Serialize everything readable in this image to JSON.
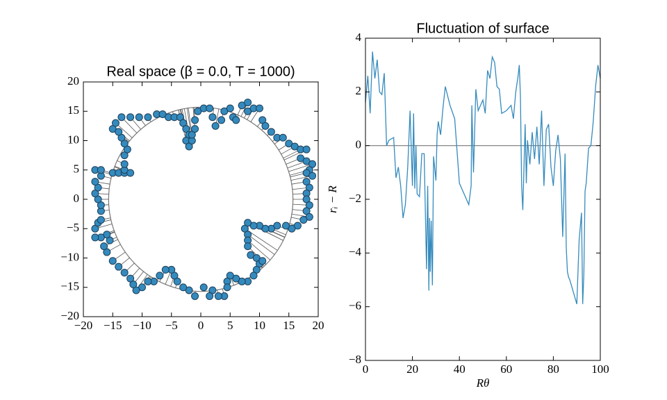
{
  "chart_data": [
    {
      "type": "scatter",
      "title": "Real space (β = 0.0, T = 1000)",
      "color": "#348abd",
      "circle_radius": 15.7,
      "x": [
        -15,
        -14.5,
        -13.5,
        -12,
        -10.5,
        -9,
        -7.5,
        -6.5,
        -5.5,
        -4.5,
        -3.5,
        -3,
        -2.5,
        -2,
        -2.5,
        -2,
        -1.5,
        -1.5,
        -1,
        -1,
        -0.5,
        0.5,
        1.5,
        2,
        2.5,
        3.5,
        4,
        5,
        5.5,
        6,
        7,
        8,
        8,
        9,
        10,
        10.5,
        11,
        12,
        13,
        14,
        15,
        16,
        17,
        18,
        17,
        18,
        19,
        18.5,
        18,
        19,
        18,
        18.5,
        18,
        18,
        18.5,
        18,
        18.5,
        17.5,
        16.5,
        15.5,
        14.5,
        13,
        12,
        11,
        10,
        9,
        8,
        7.5,
        8,
        8,
        8,
        8.5,
        9.5,
        10,
        10.5,
        9.5,
        9,
        8,
        7,
        6,
        5,
        4.5,
        4.5,
        4,
        3,
        2,
        1.5,
        0.5,
        -1,
        -2,
        -3,
        -4,
        -4.5,
        -5,
        -6,
        -7,
        -8,
        -9,
        -10,
        -11,
        -11.5,
        -12,
        -13,
        -14,
        -15,
        -16,
        -16.5,
        -15.5,
        -16,
        -17,
        -18,
        -18,
        -17.5,
        -17,
        -17,
        -17,
        -17.5,
        -18,
        -17.5,
        -18,
        -17,
        -18,
        -17,
        -15,
        -14,
        -13,
        -12,
        -13,
        -13,
        -13,
        -12.5,
        -13,
        -13.5,
        -14
      ],
      "y": [
        12,
        13,
        14,
        14,
        14,
        14,
        14.5,
        14.5,
        14,
        14,
        14,
        13,
        12,
        11,
        10,
        9,
        10,
        11,
        12,
        13.5,
        15,
        15.5,
        15.5,
        14,
        12.5,
        13.5,
        15,
        15.5,
        14,
        13.5,
        16,
        16.5,
        15,
        15.5,
        15.5,
        13.5,
        12.5,
        11.5,
        10.5,
        10.5,
        9.5,
        9,
        8.5,
        8.5,
        7,
        6.5,
        6,
        5,
        4.5,
        4,
        3,
        2,
        1,
        0,
        -1,
        -2,
        -3,
        -3.5,
        -4.5,
        -5,
        -4.5,
        -4.5,
        -5,
        -5,
        -4.5,
        -4.5,
        -4,
        -5,
        -6,
        -7,
        -8,
        -9.5,
        -10,
        -11,
        -10.5,
        -12,
        -13,
        -14,
        -14,
        -13.5,
        -13,
        -14,
        -15,
        -16.5,
        -16.5,
        -15.5,
        -16.5,
        -15,
        -16.5,
        -15.5,
        -15,
        -14,
        -13,
        -12,
        -12,
        -13,
        -14,
        -14,
        -15,
        -15.5,
        -14.5,
        -13.5,
        -12.5,
        -11.5,
        -10.5,
        -9,
        -8,
        -7,
        -6,
        -6.5,
        -6.5,
        -5,
        -4,
        -3.5,
        -2,
        -1,
        0,
        1,
        2,
        3,
        4,
        5,
        5,
        4.5,
        4.5,
        4.5,
        4.5,
        5,
        6,
        7.5,
        8.5,
        9.5,
        10.5,
        11.5
      ],
      "xlim": [
        -20,
        20
      ],
      "ylim": [
        -20,
        20
      ],
      "xticks": [
        {
          "value": -20,
          "label": "−20"
        },
        {
          "value": -15,
          "label": "−15"
        },
        {
          "value": -10,
          "label": "−10"
        },
        {
          "value": -5,
          "label": "−5"
        },
        0,
        5,
        10,
        15,
        20
      ],
      "yticks": [
        {
          "value": -20,
          "label": "−20"
        },
        {
          "value": -15,
          "label": "−15"
        },
        {
          "value": -10,
          "label": "−10"
        },
        {
          "value": -5,
          "label": "−5"
        },
        0,
        5,
        10,
        15,
        20
      ]
    },
    {
      "type": "line",
      "title": "Fluctuation of surface",
      "x_label": "Rθ",
      "y_label": "rᵢ − R",
      "color": "#348abd",
      "hline": 0,
      "x": [
        0,
        1,
        2,
        3,
        4,
        5,
        6,
        7,
        8,
        9,
        10,
        12,
        13,
        14,
        15,
        16,
        17,
        18,
        19,
        20,
        20.5,
        21,
        21.5,
        22,
        23,
        24,
        25,
        26,
        26.5,
        27,
        27.3,
        27.6,
        28,
        28.5,
        29,
        30,
        30.5,
        31,
        32,
        33,
        34,
        36,
        38,
        40,
        42,
        44,
        45,
        45.3,
        46,
        47,
        48,
        49,
        50,
        51,
        52,
        53,
        54,
        55,
        56,
        57,
        58,
        60,
        62,
        63,
        64,
        65,
        65.5,
        66,
        66.5,
        67,
        68,
        68.5,
        69,
        70,
        71,
        72,
        73,
        74,
        75,
        76,
        77,
        78,
        79,
        80,
        81,
        82,
        83,
        84,
        85,
        85.5,
        86,
        86.5,
        87,
        90,
        91,
        92,
        92.5,
        93,
        93.5,
        94,
        95,
        96,
        97,
        98,
        99,
        100
      ],
      "values": [
        1.6,
        2.6,
        1.2,
        3.5,
        2.5,
        3.2,
        2.0,
        1.9,
        2.7,
        0.0,
        0.2,
        0.3,
        -1.2,
        -0.8,
        -1.5,
        -2.7,
        -2.2,
        -0.8,
        1.3,
        -1.5,
        1.2,
        -1.6,
        0.0,
        -1.8,
        -1.9,
        -0.3,
        -0.3,
        -4.6,
        -1.5,
        -5.4,
        -2.7,
        -4.7,
        -2.8,
        -5.2,
        -0.4,
        -1.3,
        0.4,
        0.9,
        0.4,
        1.4,
        2.2,
        1.5,
        1.0,
        -1.4,
        -1.8,
        -2.2,
        -1.5,
        1.5,
        -1.0,
        2.1,
        1.3,
        1.5,
        1.7,
        1.2,
        2.8,
        2.5,
        3.3,
        3.1,
        2.2,
        2.1,
        1.2,
        1.3,
        1.5,
        1.0,
        2.0,
        2.6,
        3.0,
        1.8,
        -1.5,
        -2.4,
        0.8,
        -1.4,
        0.2,
        -0.7,
        0.5,
        -0.5,
        0.7,
        -0.7,
        1.3,
        -1.5,
        0.6,
        0.8,
        -0.8,
        -1.5,
        -0.2,
        0.4,
        -0.5,
        -3.4,
        -0.3,
        -3.8,
        -4.7,
        -4.9,
        -5.0,
        -5.9,
        -3.5,
        -2.5,
        -5.9,
        -4.8,
        -1.7,
        -1.4,
        -0.1,
        0.0,
        0.9,
        2.2,
        3.0,
        2.5
      ],
      "xlim": [
        0,
        100
      ],
      "ylim": [
        -8,
        4
      ],
      "xticks": [
        0,
        20,
        40,
        60,
        80,
        100
      ],
      "yticks": [
        {
          "value": -8,
          "label": "−8"
        },
        {
          "value": -6,
          "label": "−6"
        },
        {
          "value": -4,
          "label": "−4"
        },
        {
          "value": -2,
          "label": "−2"
        },
        0,
        2,
        4
      ]
    }
  ]
}
